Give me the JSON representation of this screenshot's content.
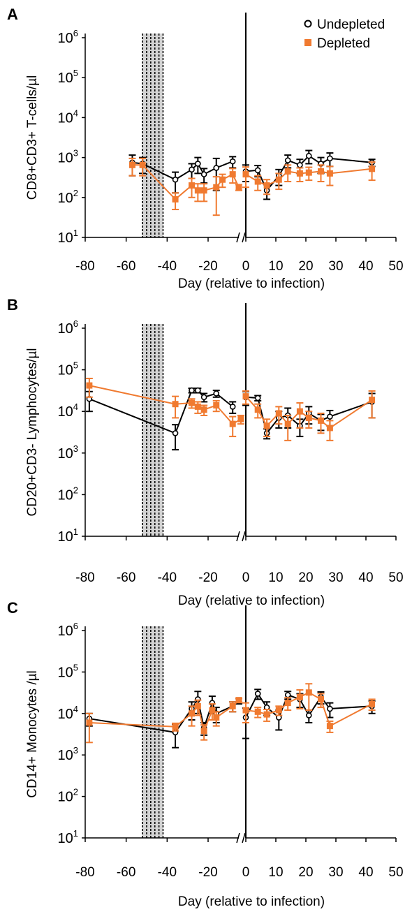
{
  "colors": {
    "undepleted": "#000000",
    "depleted": "#f07a30"
  },
  "chart_data": [
    {
      "type": "line",
      "panel_label": "A",
      "ylabel": "CD8+CD3+ T-cells/µl",
      "xlabel": "Day (relative to infection)",
      "yscale": "log",
      "ylim": [
        10,
        1000000
      ],
      "ytick_labels": [
        {
          "base": "10",
          "exp": "1"
        },
        {
          "base": "10",
          "exp": "2"
        },
        {
          "base": "10",
          "exp": "3"
        },
        {
          "base": "10",
          "exp": "4"
        },
        {
          "base": "10",
          "exp": "5"
        },
        {
          "base": "10",
          "exp": "6"
        }
      ],
      "xlim_left": [
        -80,
        -5
      ],
      "xlim_right": [
        0,
        50
      ],
      "xticks_left": [
        -80,
        -60,
        -40,
        -20
      ],
      "xticks_right": [
        0,
        10,
        20,
        30,
        40,
        50
      ],
      "depletion_days": [
        -52,
        -50,
        -48,
        -46,
        -44,
        -42
      ],
      "legend": {
        "position": "top-right",
        "entries": [
          "Undepleted",
          "Depleted"
        ]
      },
      "series": [
        {
          "name": "Undepleted",
          "marker": "open-circle",
          "left": [
            {
              "x": -57,
              "y": 750,
              "err": 400
            },
            {
              "x": -52,
              "y": 700,
              "err": 300
            },
            {
              "x": -36,
              "y": 280,
              "err": 150
            },
            {
              "x": -28,
              "y": 500,
              "err": 200
            },
            {
              "x": -25,
              "y": 700,
              "err": 300
            },
            {
              "x": -22,
              "y": 380,
              "err": 150
            },
            {
              "x": -16,
              "y": 550,
              "err": 400
            },
            {
              "x": -8,
              "y": 800,
              "err": 250
            }
          ],
          "right": [
            {
              "x": 0,
              "y": 450,
              "err": 200
            },
            {
              "x": 4,
              "y": 480,
              "err": 150
            },
            {
              "x": 7,
              "y": 150,
              "err": 60
            },
            {
              "x": 11,
              "y": 350,
              "err": 150
            },
            {
              "x": 14,
              "y": 850,
              "err": 300
            },
            {
              "x": 18,
              "y": 650,
              "err": 250
            },
            {
              "x": 21,
              "y": 1100,
              "err": 400
            },
            {
              "x": 25,
              "y": 700,
              "err": 300
            },
            {
              "x": 28,
              "y": 950,
              "err": 350
            },
            {
              "x": 42,
              "y": 750,
              "err": 150
            }
          ]
        },
        {
          "name": "Depleted",
          "marker": "square",
          "left": [
            {
              "x": -57,
              "y": 650,
              "err": 300
            },
            {
              "x": -52,
              "y": 650,
              "err": 300
            },
            {
              "x": -36,
              "y": 90,
              "err": 40
            },
            {
              "x": -28,
              "y": 200,
              "err": 100
            },
            {
              "x": -25,
              "y": 150,
              "err": 70
            },
            {
              "x": -22,
              "y": 150,
              "err": 70
            },
            {
              "x": -16,
              "y": 180,
              "err": 150
            },
            {
              "x": -13,
              "y": 280,
              "err": 100
            },
            {
              "x": -8,
              "y": 380,
              "err": 150
            },
            {
              "x": -5,
              "y": 180,
              "err": 30
            }
          ],
          "right": [
            {
              "x": 0,
              "y": 380,
              "err": 200
            },
            {
              "x": 4,
              "y": 250,
              "err": 100
            },
            {
              "x": 7,
              "y": 200,
              "err": 80
            },
            {
              "x": 11,
              "y": 280,
              "err": 120
            },
            {
              "x": 14,
              "y": 450,
              "err": 200
            },
            {
              "x": 18,
              "y": 400,
              "err": 150
            },
            {
              "x": 21,
              "y": 420,
              "err": 150
            },
            {
              "x": 25,
              "y": 450,
              "err": 200
            },
            {
              "x": 28,
              "y": 400,
              "err": 200
            },
            {
              "x": 42,
              "y": 520,
              "err": 250
            }
          ]
        }
      ]
    },
    {
      "type": "line",
      "panel_label": "B",
      "ylabel": "CD20+CD3- Lymphocytes/µl",
      "xlabel": "Day (relative to infection)",
      "yscale": "log",
      "ylim": [
        10,
        1000000
      ],
      "ytick_labels": [
        {
          "base": "10",
          "exp": "1"
        },
        {
          "base": "10",
          "exp": "2"
        },
        {
          "base": "10",
          "exp": "3"
        },
        {
          "base": "10",
          "exp": "4"
        },
        {
          "base": "10",
          "exp": "5"
        },
        {
          "base": "10",
          "exp": "6"
        }
      ],
      "xlim_left": [
        -80,
        -5
      ],
      "xlim_right": [
        0,
        50
      ],
      "xticks_left": [
        -80,
        -60,
        -40,
        -20
      ],
      "xticks_right": [
        0,
        10,
        20,
        30,
        40,
        50
      ],
      "depletion_days": [
        -52,
        -50,
        -48,
        -46,
        -44,
        -42
      ],
      "series": [
        {
          "name": "Undepleted",
          "marker": "open-circle",
          "left": [
            {
              "x": -78,
              "y": 20000,
              "err": 10000
            },
            {
              "x": -36,
              "y": 3000,
              "err": 1800
            },
            {
              "x": -28,
              "y": 32000,
              "err": 4000
            },
            {
              "x": -25,
              "y": 32000,
              "err": 4000
            },
            {
              "x": -22,
              "y": 22000,
              "err": 5000
            },
            {
              "x": -16,
              "y": 27000,
              "err": 5000
            },
            {
              "x": -8,
              "y": 13000,
              "err": 4000
            }
          ],
          "right": [
            {
              "x": 0,
              "y": 22000,
              "err": 8000
            },
            {
              "x": 4,
              "y": 21000,
              "err": 3000
            },
            {
              "x": 7,
              "y": 3000,
              "err": 800
            },
            {
              "x": 11,
              "y": 7000,
              "err": 3000
            },
            {
              "x": 14,
              "y": 8000,
              "err": 4000
            },
            {
              "x": 18,
              "y": 4500,
              "err": 2000
            },
            {
              "x": 21,
              "y": 9000,
              "err": 4000
            },
            {
              "x": 25,
              "y": 6000,
              "err": 2500
            },
            {
              "x": 28,
              "y": 7500,
              "err": 3000
            },
            {
              "x": 42,
              "y": 17000,
              "err": 10000
            }
          ]
        },
        {
          "name": "Depleted",
          "marker": "square",
          "left": [
            {
              "x": -78,
              "y": 42000,
              "err": 20000
            },
            {
              "x": -36,
              "y": 15000,
              "err": 8000
            },
            {
              "x": -28,
              "y": 16000,
              "err": 4000
            },
            {
              "x": -25,
              "y": 13000,
              "err": 4000
            },
            {
              "x": -22,
              "y": 11000,
              "err": 3000
            },
            {
              "x": -16,
              "y": 14000,
              "err": 4000
            },
            {
              "x": -8,
              "y": 5000,
              "err": 2500
            },
            {
              "x": -4,
              "y": 6500,
              "err": 1500
            }
          ],
          "right": [
            {
              "x": 0,
              "y": 23000,
              "err": 8000
            },
            {
              "x": 4,
              "y": 11000,
              "err": 4000
            },
            {
              "x": 7,
              "y": 4500,
              "err": 2000
            },
            {
              "x": 11,
              "y": 9000,
              "err": 4000
            },
            {
              "x": 14,
              "y": 5000,
              "err": 3000
            },
            {
              "x": 18,
              "y": 10000,
              "err": 6000
            },
            {
              "x": 21,
              "y": 7000,
              "err": 3000
            },
            {
              "x": 25,
              "y": 6000,
              "err": 3000
            },
            {
              "x": 28,
              "y": 4000,
              "err": 2000
            },
            {
              "x": 42,
              "y": 19000,
              "err": 12000
            }
          ]
        }
      ]
    },
    {
      "type": "line",
      "panel_label": "C",
      "ylabel": "CD14+ Monocytes /µl",
      "xlabel": "Day (relative to infection)",
      "yscale": "log",
      "ylim": [
        10,
        1000000
      ],
      "ytick_labels": [
        {
          "base": "10",
          "exp": "1"
        },
        {
          "base": "10",
          "exp": "2"
        },
        {
          "base": "10",
          "exp": "3"
        },
        {
          "base": "10",
          "exp": "4"
        },
        {
          "base": "10",
          "exp": "5"
        },
        {
          "base": "10",
          "exp": "6"
        }
      ],
      "xlim_left": [
        -80,
        -5
      ],
      "xlim_right": [
        0,
        50
      ],
      "xticks_left": [
        -80,
        -60,
        -40,
        -20
      ],
      "xticks_right": [
        0,
        10,
        20,
        30,
        40,
        50
      ],
      "depletion_days": [
        -52,
        -50,
        -48,
        -46,
        -44,
        -42
      ],
      "series": [
        {
          "name": "Undepleted",
          "marker": "open-circle",
          "left": [
            {
              "x": -78,
              "y": 7500,
              "err": 2500
            },
            {
              "x": -36,
              "y": 3500,
              "err": 2000
            },
            {
              "x": -28,
              "y": 13000,
              "err": 6000
            },
            {
              "x": -25,
              "y": 22000,
              "err": 12000
            },
            {
              "x": -22,
              "y": 4500,
              "err": 1500
            },
            {
              "x": -18,
              "y": 18000,
              "err": 8000
            },
            {
              "x": -16,
              "y": 10000,
              "err": 4000
            },
            {
              "x": -8,
              "y": 15000,
              "err": 4000
            },
            {
              "x": -5,
              "y": 20000,
              "err": 3000
            }
          ],
          "right": [
            {
              "x": 0,
              "y": 8000,
              "err": 5500
            },
            {
              "x": 4,
              "y": 30000,
              "err": 8000
            },
            {
              "x": 7,
              "y": 14000,
              "err": 5000
            },
            {
              "x": 11,
              "y": 8000,
              "err": 4000
            },
            {
              "x": 14,
              "y": 28000,
              "err": 6000
            },
            {
              "x": 18,
              "y": 22000,
              "err": 8000
            },
            {
              "x": 21,
              "y": 9000,
              "err": 3000
            },
            {
              "x": 25,
              "y": 25000,
              "err": 8000
            },
            {
              "x": 28,
              "y": 13000,
              "err": 5000
            },
            {
              "x": 42,
              "y": 15000,
              "err": 5000
            }
          ]
        },
        {
          "name": "Depleted",
          "marker": "square",
          "left": [
            {
              "x": -78,
              "y": 6000,
              "err": 4000
            },
            {
              "x": -36,
              "y": 4800,
              "err": 1000
            },
            {
              "x": -28,
              "y": 10000,
              "err": 5000
            },
            {
              "x": -25,
              "y": 15000,
              "err": 6000
            },
            {
              "x": -22,
              "y": 3800,
              "err": 1500
            },
            {
              "x": -18,
              "y": 12000,
              "err": 5000
            },
            {
              "x": -16,
              "y": 8000,
              "err": 3000
            },
            {
              "x": -8,
              "y": 15000,
              "err": 4000
            },
            {
              "x": -5,
              "y": 21000,
              "err": 2000
            }
          ],
          "right": [
            {
              "x": 0,
              "y": 12000,
              "err": 6000
            },
            {
              "x": 4,
              "y": 11000,
              "err": 3000
            },
            {
              "x": 7,
              "y": 9500,
              "err": 3000
            },
            {
              "x": 11,
              "y": 12000,
              "err": 3000
            },
            {
              "x": 14,
              "y": 18000,
              "err": 6000
            },
            {
              "x": 18,
              "y": 25000,
              "err": 12000
            },
            {
              "x": 21,
              "y": 32000,
              "err": 20000
            },
            {
              "x": 25,
              "y": 22000,
              "err": 8000
            },
            {
              "x": 28,
              "y": 5000,
              "err": 1500
            },
            {
              "x": 42,
              "y": 17000,
              "err": 5000
            }
          ]
        }
      ]
    }
  ]
}
